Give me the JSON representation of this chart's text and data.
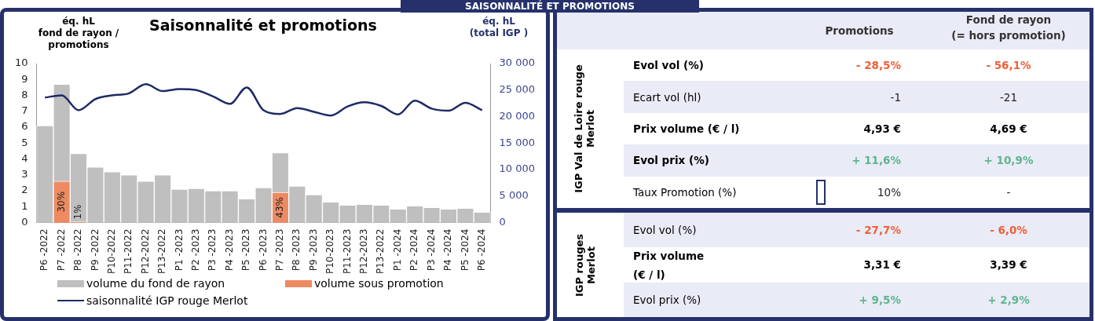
{
  "chart_data": [
    {
      "type": "bar",
      "title": "Saisonnalité et promotions",
      "ylabel": "éq. hL\nfond de rayon /\npromotions",
      "y2label": "éq. hL\n(total IGP )",
      "categories": [
        "P6 -2022",
        "P7 -2022",
        "P8 -2022",
        "P9 -2022",
        "P10-2022",
        "P11-2022",
        "P12-2022",
        "P13-2022",
        "P1 -2023",
        "P2 -2023",
        "P3 -2023",
        "P4 -2023",
        "P5 -2023",
        "P6 -2023",
        "P7 -2023",
        "P8 -2023",
        "P9 -2023",
        "P10-2023",
        "P11-2023",
        "P12-2023",
        "P13-2022",
        "P1 -2024",
        "P2 -2024",
        "P3 -2024",
        "P4 -2024",
        "P5 -2024",
        "P6 -2024"
      ],
      "stacked": true,
      "series": [
        {
          "name": "volume sous promotion",
          "color": "#ee8a62",
          "values": [
            null,
            2.6,
            0.04,
            null,
            null,
            null,
            null,
            null,
            null,
            null,
            null,
            null,
            null,
            null,
            1.9,
            null,
            null,
            null,
            null,
            null,
            null,
            null,
            null,
            null,
            null,
            null,
            null
          ]
        },
        {
          "name": "volume du fond de rayon",
          "color": "#bfbfbf",
          "values": [
            6.1,
            6.1,
            4.3,
            3.5,
            3.2,
            3.0,
            2.6,
            3.0,
            2.1,
            2.15,
            2.0,
            2.0,
            1.5,
            2.2,
            2.5,
            2.3,
            1.75,
            1.3,
            1.1,
            1.15,
            1.1,
            0.85,
            1.05,
            0.95,
            0.85,
            0.9,
            0.65
          ]
        },
        {
          "name": "saisonnalité IGP rouge Merlot",
          "type": "line",
          "axis": "y2",
          "color": "#1f2a66",
          "values": [
            23600,
            24000,
            21200,
            23300,
            24000,
            24400,
            26100,
            24800,
            25200,
            25000,
            23800,
            22400,
            25500,
            21200,
            20500,
            21600,
            20900,
            20200,
            21900,
            22700,
            22000,
            20400,
            23000,
            21500,
            21100,
            22600,
            21200
          ]
        }
      ],
      "ylim": [
        0,
        10
      ],
      "yticks": [
        0,
        1,
        2,
        3,
        4,
        5,
        6,
        7,
        8,
        9,
        10
      ],
      "y2lim": [
        0,
        30000
      ],
      "y2ticks": [
        0,
        {
          "value": 5000,
          "label": "5 000"
        },
        {
          "value": 10000,
          "label": "10 000"
        },
        {
          "value": 15000,
          "label": "15 000"
        },
        {
          "value": 20000,
          "label": "20 000"
        },
        {
          "value": 25000,
          "label": "25 000"
        },
        {
          "value": 30000,
          "label": "30 000"
        }
      ],
      "annotations": [
        {
          "text": "30%",
          "x": "P7 -2022",
          "y": 2.6
        },
        {
          "text": "1%",
          "x": "P8 -2022",
          "y": 0.04
        },
        {
          "text": "43%",
          "x": "P7 -2023",
          "y": 1.9
        }
      ],
      "marker": "none",
      "legend": "bottom"
    },
    {
      "type": "other",
      "title": "SAISONNALITÉ ET PROMOTIONS",
      "categories": [
        "Promotions",
        "Fond de rayon\n(= hors promotion)"
      ],
      "ylabel": "IGP Val de Loire rouge Merlot",
      "y_categories": [
        "Evol vol (%)",
        "Ecart vol (hl)",
        "Prix volume (€ / l)",
        "Evol prix (%)",
        "Taux Promotion (%)"
      ],
      "cell_labels": [
        [
          "- 28,5%",
          "- 56,1%"
        ],
        [
          "-1",
          "-21"
        ],
        [
          "4,93 €",
          "4,69 €"
        ],
        [
          "+ 11,6%",
          "+ 10,9%"
        ],
        [
          "10%",
          "-"
        ]
      ],
      "colors": [
        [
          "#f0603a",
          "#f0603a"
        ],
        [
          "#222222",
          "#222222"
        ],
        [
          "#000000",
          "#000000"
        ],
        [
          "#5fb58f",
          "#5fb58f"
        ],
        [
          "#222222",
          "#222222"
        ]
      ]
    },
    {
      "type": "other",
      "ylabel": "IGP rouges Merlot",
      "y_categories": [
        "Evol vol (%)",
        "Prix volume\n(€ / l)",
        "Evol prix (%)"
      ],
      "cell_labels": [
        [
          "- 27,7%",
          "- 6,0%"
        ],
        [
          "3,31 €",
          "3,39 €"
        ],
        [
          "+ 9,5%",
          "+ 2,9%"
        ]
      ],
      "colors": [
        [
          "#f0603a",
          "#f0603a"
        ],
        [
          "#000000",
          "#000000"
        ],
        [
          "#5fb58f",
          "#5fb58f"
        ]
      ]
    }
  ]
}
